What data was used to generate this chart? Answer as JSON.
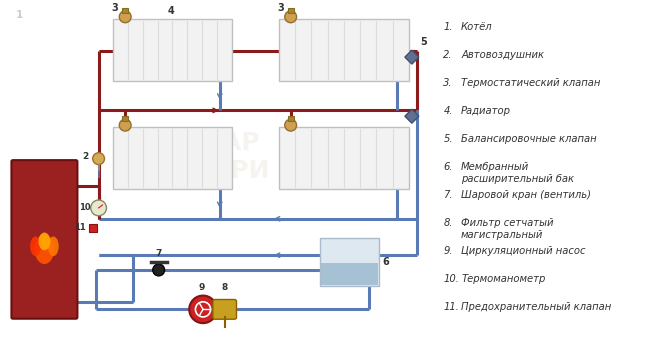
{
  "bg_color": "#ffffff",
  "hot_color": "#8B1A1A",
  "cold_color": "#5a7ab5",
  "lw_main": 2.2,
  "lw_thin": 1.6,
  "legend_items": [
    {
      "num": "1.",
      "text": "Котёл"
    },
    {
      "num": "2.",
      "text": "Автовоздушник"
    },
    {
      "num": "3.",
      "text": "Термостатический клапан"
    },
    {
      "num": "4.",
      "text": "Радиатор"
    },
    {
      "num": "5.",
      "text": "Балансировочные клапан"
    },
    {
      "num": "6.",
      "text": "Мембранный\nрасширительный бак"
    },
    {
      "num": "7.",
      "text": "Шаровой кран (вентиль)"
    },
    {
      "num": "8.",
      "text": "Фильтр сетчатый\nмагистральный"
    },
    {
      "num": "9.",
      "text": "Циркуляционный насос"
    },
    {
      "num": "10.",
      "text": "Термоманометр"
    },
    {
      "num": "11.",
      "text": "Предохранительный клапан"
    }
  ],
  "rad_color": "#f2f2f2",
  "rad_edge": "#c0c0c0",
  "rad_stripe": "#dcdcdc",
  "boiler_face": "#9B2020",
  "boiler_edge": "#6B1010"
}
